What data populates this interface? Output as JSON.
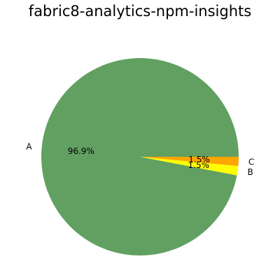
{
  "chart_data": {
    "type": "pie",
    "title": "fabric8-analytics-npm-insights",
    "slices": [
      {
        "label": "A",
        "value": 96.9,
        "pct_label": "96.9%",
        "color": "#61a061"
      },
      {
        "label": "B",
        "value": 1.5,
        "pct_label": "1.5%",
        "color": "#ffff00"
      },
      {
        "label": "C",
        "value": 1.5,
        "pct_label": "1.5%",
        "color": "#ffa500"
      }
    ]
  }
}
